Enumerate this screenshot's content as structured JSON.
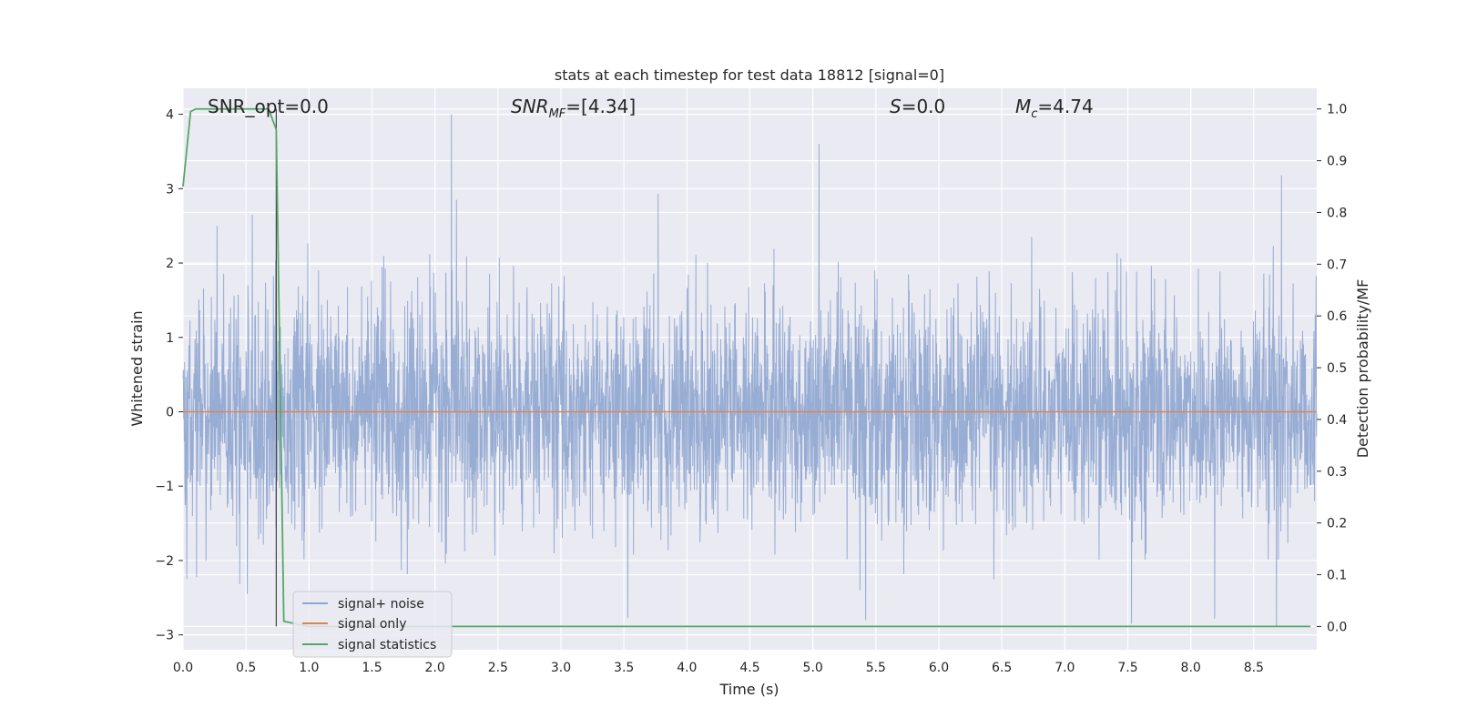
{
  "chart_data": {
    "type": "line",
    "title": "stats at each timestep for test data 18812 [signal=0]",
    "xlabel": "Time (s)",
    "ylabel_left": "Whitened strain",
    "ylabel_right": "Detection probability/MF",
    "xlim": [
      0.0,
      9.0
    ],
    "ylim_left": [
      -3.2,
      4.35
    ],
    "ylim_right": [
      -0.045,
      1.04
    ],
    "x_ticks": [
      "0.0",
      "0.5",
      "1.0",
      "1.5",
      "2.0",
      "2.5",
      "3.0",
      "3.5",
      "4.0",
      "4.5",
      "5.0",
      "5.5",
      "6.0",
      "6.5",
      "7.0",
      "7.5",
      "8.0",
      "8.5"
    ],
    "x_tick_values": [
      0.0,
      0.5,
      1.0,
      1.5,
      2.0,
      2.5,
      3.0,
      3.5,
      4.0,
      4.5,
      5.0,
      5.5,
      6.0,
      6.5,
      7.0,
      7.5,
      8.0,
      8.5
    ],
    "y_ticks_left": [
      "−3",
      "−2",
      "−1",
      "0",
      "1",
      "2",
      "3",
      "4"
    ],
    "y_tick_values_left": [
      -3,
      -2,
      -1,
      0,
      1,
      2,
      3,
      4
    ],
    "y_ticks_right": [
      "0.0",
      "0.1",
      "0.2",
      "0.3",
      "0.4",
      "0.5",
      "0.6",
      "0.7",
      "0.8",
      "0.9",
      "1.0"
    ],
    "y_tick_values_right": [
      0.0,
      0.1,
      0.2,
      0.3,
      0.4,
      0.5,
      0.6,
      0.7,
      0.8,
      0.9,
      1.0
    ],
    "grid": true,
    "legend_position": "lower-left",
    "annotations": {
      "snr_opt": "SNR_opt=0.0",
      "snr_mf_main": "SNR",
      "snr_mf_sub": "MF",
      "snr_mf_value": "=[4.34]",
      "s_main": "S",
      "s_value": "=0.0",
      "mc_main": "M",
      "mc_sub": "c",
      "mc_value": "=4.74"
    },
    "marker_line_x": 0.74,
    "series": [
      {
        "name": "signal+ noise",
        "axis": "left",
        "color": "#8fa6d0",
        "kind": "noise",
        "noise_sigma": 0.75,
        "x_range": [
          0.0,
          9.0
        ],
        "peaks": [
          {
            "x": 2.13,
            "y": 4.0
          },
          {
            "x": 5.05,
            "y": 3.6
          },
          {
            "x": 8.72,
            "y": 3.18
          },
          {
            "x": 3.77,
            "y": 2.93
          },
          {
            "x": 2.17,
            "y": 2.85
          },
          {
            "x": 0.55,
            "y": 2.65
          },
          {
            "x": 0.27,
            "y": 2.5
          },
          {
            "x": 0.74,
            "y": 2.17
          },
          {
            "x": 8.68,
            "y": -2.88
          },
          {
            "x": 7.53,
            "y": -2.85
          },
          {
            "x": 3.53,
            "y": -2.77
          },
          {
            "x": 5.42,
            "y": -2.8
          },
          {
            "x": 8.19,
            "y": -2.78
          },
          {
            "x": 0.51,
            "y": -2.45
          },
          {
            "x": 0.03,
            "y": -2.25
          }
        ]
      },
      {
        "name": "signal only",
        "axis": "left",
        "color": "#dd8452",
        "kind": "constant",
        "x": [
          0.0,
          9.0
        ],
        "y": [
          0.0,
          0.0
        ]
      },
      {
        "name": "signal statistics",
        "axis": "right",
        "color": "#55a868",
        "kind": "line",
        "x": [
          0.0,
          0.06,
          0.1,
          0.2,
          0.3,
          0.4,
          0.5,
          0.6,
          0.68,
          0.74,
          0.8,
          1.0,
          2.0,
          3.0,
          4.0,
          5.0,
          6.0,
          7.0,
          8.0,
          8.95
        ],
        "y": [
          0.85,
          0.995,
          1.0,
          1.0,
          1.0,
          1.0,
          1.0,
          1.0,
          1.0,
          0.96,
          0.01,
          0.0,
          0.0,
          0.0,
          0.0,
          0.0,
          0.0,
          0.0,
          0.0,
          0.0
        ]
      }
    ]
  }
}
